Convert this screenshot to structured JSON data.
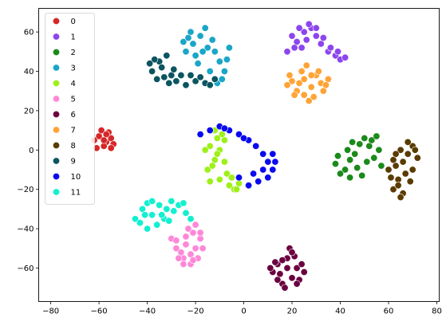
{
  "chart_data": {
    "type": "scatter",
    "title": "",
    "xlabel": "",
    "ylabel": "",
    "xlim": [
      -85,
      81
    ],
    "ylim": [
      -77,
      72
    ],
    "xticks": [
      "−80",
      "−60",
      "−40",
      "−20",
      "0",
      "20",
      "40",
      "60",
      "80"
    ],
    "xtick_values": [
      -80,
      -60,
      -40,
      -20,
      0,
      20,
      40,
      60,
      80
    ],
    "yticks": [
      "−60",
      "−40",
      "−20",
      "0",
      "20",
      "40",
      "60"
    ],
    "ytick_values": [
      -60,
      -40,
      -20,
      0,
      20,
      40,
      60
    ],
    "grid": false,
    "legend_position": "upper-left",
    "series": [
      {
        "name": "0",
        "color": "#d62728",
        "points": [
          [
            -60,
            7
          ],
          [
            -57,
            4
          ],
          [
            -55,
            6
          ],
          [
            -58,
            2
          ],
          [
            -56,
            9
          ],
          [
            -62,
            5
          ],
          [
            -54,
            3
          ],
          [
            -59,
            10
          ],
          [
            -61,
            1
          ],
          [
            -57,
            8
          ],
          [
            -55,
            1
          ],
          [
            -58,
            5
          ]
        ]
      },
      {
        "name": "1",
        "color": "#8c46ee",
        "points": [
          [
            18,
            50
          ],
          [
            22,
            55
          ],
          [
            25,
            60
          ],
          [
            28,
            62
          ],
          [
            30,
            58
          ],
          [
            20,
            58
          ],
          [
            24,
            52
          ],
          [
            32,
            54
          ],
          [
            35,
            50
          ],
          [
            38,
            48
          ],
          [
            40,
            46
          ],
          [
            42,
            47
          ],
          [
            27,
            64
          ],
          [
            33,
            57
          ],
          [
            21,
            52
          ],
          [
            36,
            52
          ],
          [
            30,
            62
          ],
          [
            23,
            62
          ],
          [
            39,
            50
          ],
          [
            26,
            56
          ]
        ]
      },
      {
        "name": "2",
        "color": "#1a8a1a",
        "points": [
          [
            38,
            -7
          ],
          [
            42,
            -10
          ],
          [
            44,
            -5
          ],
          [
            46,
            -2
          ],
          [
            48,
            3
          ],
          [
            50,
            6
          ],
          [
            52,
            2
          ],
          [
            54,
            -4
          ],
          [
            44,
            -14
          ],
          [
            40,
            -12
          ],
          [
            56,
            0
          ],
          [
            47,
            -9
          ],
          [
            51,
            -6
          ],
          [
            43,
            0
          ],
          [
            53,
            5
          ],
          [
            45,
            4
          ],
          [
            57,
            -8
          ],
          [
            49,
            -13
          ],
          [
            39,
            -3
          ],
          [
            55,
            7
          ]
        ]
      },
      {
        "name": "3",
        "color": "#1aa6c8",
        "points": [
          [
            -25,
            55
          ],
          [
            -22,
            60
          ],
          [
            -18,
            58
          ],
          [
            -15,
            52
          ],
          [
            -12,
            50
          ],
          [
            -10,
            45
          ],
          [
            -8,
            40
          ],
          [
            -6,
            52
          ],
          [
            -20,
            48
          ],
          [
            -14,
            40
          ],
          [
            -24,
            50
          ],
          [
            -16,
            62
          ],
          [
            -11,
            34
          ],
          [
            -7,
            46
          ],
          [
            -19,
            44
          ],
          [
            -13,
            56
          ],
          [
            -21,
            54
          ],
          [
            -9,
            36
          ],
          [
            -17,
            50
          ],
          [
            -23,
            57
          ]
        ]
      },
      {
        "name": "4",
        "color": "#9ef01a",
        "points": [
          [
            -15,
            -10
          ],
          [
            -12,
            -5
          ],
          [
            -10,
            0
          ],
          [
            -8,
            5
          ],
          [
            -12,
            10
          ],
          [
            -14,
            2
          ],
          [
            -10,
            -15
          ],
          [
            -6,
            -18
          ],
          [
            -4,
            -20
          ],
          [
            -2,
            -17
          ],
          [
            -13,
            -8
          ],
          [
            -9,
            8
          ],
          [
            -11,
            -2
          ],
          [
            -7,
            -12
          ],
          [
            -16,
            0
          ],
          [
            -5,
            -14
          ],
          [
            -14,
            -16
          ],
          [
            -11,
            6
          ],
          [
            -8,
            -6
          ],
          [
            -3,
            -20
          ]
        ]
      },
      {
        "name": "5",
        "color": "#ff88d8",
        "points": [
          [
            -30,
            -45
          ],
          [
            -28,
            -50
          ],
          [
            -25,
            -55
          ],
          [
            -22,
            -58
          ],
          [
            -20,
            -50
          ],
          [
            -18,
            -45
          ],
          [
            -23,
            -40
          ],
          [
            -27,
            -55
          ],
          [
            -19,
            -55
          ],
          [
            -24,
            -48
          ],
          [
            -21,
            -42
          ],
          [
            -26,
            -52
          ],
          [
            -17,
            -50
          ],
          [
            -22,
            -53
          ],
          [
            -28,
            -46
          ],
          [
            -20,
            -38
          ],
          [
            -25,
            -58
          ],
          [
            -18,
            -42
          ],
          [
            -24,
            -44
          ],
          [
            -21,
            -56
          ]
        ]
      },
      {
        "name": "6",
        "color": "#6b0040",
        "points": [
          [
            14,
            -58
          ],
          [
            18,
            -55
          ],
          [
            22,
            -60
          ],
          [
            20,
            -65
          ],
          [
            16,
            -68
          ],
          [
            12,
            -62
          ],
          [
            24,
            -58
          ],
          [
            19,
            -50
          ],
          [
            17,
            -70
          ],
          [
            13,
            -57
          ],
          [
            21,
            -54
          ],
          [
            23,
            -66
          ],
          [
            15,
            -63
          ],
          [
            25,
            -62
          ],
          [
            18,
            -60
          ],
          [
            20,
            -52
          ],
          [
            14,
            -66
          ],
          [
            22,
            -68
          ],
          [
            16,
            -56
          ],
          [
            11,
            -60
          ]
        ]
      },
      {
        "name": "7",
        "color": "#ffa436",
        "points": [
          [
            20,
            35
          ],
          [
            22,
            30
          ],
          [
            25,
            28
          ],
          [
            28,
            32
          ],
          [
            30,
            38
          ],
          [
            32,
            34
          ],
          [
            35,
            36
          ],
          [
            24,
            40
          ],
          [
            18,
            33
          ],
          [
            27,
            25
          ],
          [
            33,
            30
          ],
          [
            23,
            34
          ],
          [
            29,
            27
          ],
          [
            19,
            38
          ],
          [
            26,
            43
          ],
          [
            31,
            40
          ],
          [
            21,
            28
          ],
          [
            34,
            33
          ],
          [
            25,
            36
          ],
          [
            28,
            38
          ]
        ]
      },
      {
        "name": "8",
        "color": "#5a3b00",
        "points": [
          [
            60,
            -10
          ],
          [
            62,
            -5
          ],
          [
            65,
            0
          ],
          [
            68,
            -2
          ],
          [
            70,
            2
          ],
          [
            64,
            -15
          ],
          [
            62,
            -20
          ],
          [
            66,
            -22
          ],
          [
            72,
            -4
          ],
          [
            67,
            -12
          ],
          [
            63,
            -8
          ],
          [
            69,
            -16
          ],
          [
            61,
            -14
          ],
          [
            71,
            0
          ],
          [
            65,
            -24
          ],
          [
            66,
            -6
          ],
          [
            70,
            -10
          ],
          [
            64,
            -18
          ],
          [
            68,
            4
          ],
          [
            63,
            -2
          ]
        ]
      },
      {
        "name": "9",
        "color": "#0a5560",
        "points": [
          [
            -38,
            40
          ],
          [
            -35,
            45
          ],
          [
            -32,
            48
          ],
          [
            -36,
            36
          ],
          [
            -30,
            38
          ],
          [
            -28,
            35
          ],
          [
            -24,
            33
          ],
          [
            -20,
            35
          ],
          [
            -16,
            34
          ],
          [
            -12,
            36
          ],
          [
            -34,
            42
          ],
          [
            -26,
            38
          ],
          [
            -18,
            37
          ],
          [
            -37,
            46
          ],
          [
            -31,
            34
          ],
          [
            -14,
            33
          ],
          [
            -22,
            38
          ],
          [
            -29,
            41
          ],
          [
            -33,
            37
          ],
          [
            -39,
            44
          ]
        ]
      },
      {
        "name": "10",
        "color": "#0a0af0",
        "points": [
          [
            -18,
            8
          ],
          [
            -14,
            10
          ],
          [
            -10,
            12
          ],
          [
            -6,
            10
          ],
          [
            -2,
            8
          ],
          [
            2,
            5
          ],
          [
            5,
            2
          ],
          [
            8,
            -2
          ],
          [
            10,
            -6
          ],
          [
            12,
            -10
          ],
          [
            10,
            -14
          ],
          [
            6,
            -16
          ],
          [
            2,
            -18
          ],
          [
            -2,
            -14
          ],
          [
            4,
            -12
          ],
          [
            12,
            -2
          ],
          [
            0,
            6
          ],
          [
            -8,
            11
          ],
          [
            8,
            -10
          ],
          [
            13,
            -6
          ]
        ]
      },
      {
        "name": "11",
        "color": "#12f0d0",
        "points": [
          [
            -45,
            -35
          ],
          [
            -42,
            -30
          ],
          [
            -40,
            -27
          ],
          [
            -38,
            -33
          ],
          [
            -35,
            -28
          ],
          [
            -32,
            -30
          ],
          [
            -30,
            -26
          ],
          [
            -27,
            -28
          ],
          [
            -24,
            -32
          ],
          [
            -22,
            -35
          ],
          [
            -40,
            -40
          ],
          [
            -36,
            -38
          ],
          [
            -43,
            -37
          ],
          [
            -33,
            -35
          ],
          [
            -29,
            -31
          ],
          [
            -38,
            -26
          ],
          [
            -25,
            -27
          ],
          [
            -41,
            -33
          ],
          [
            -34,
            -33
          ],
          [
            -31,
            -36
          ]
        ]
      }
    ]
  }
}
